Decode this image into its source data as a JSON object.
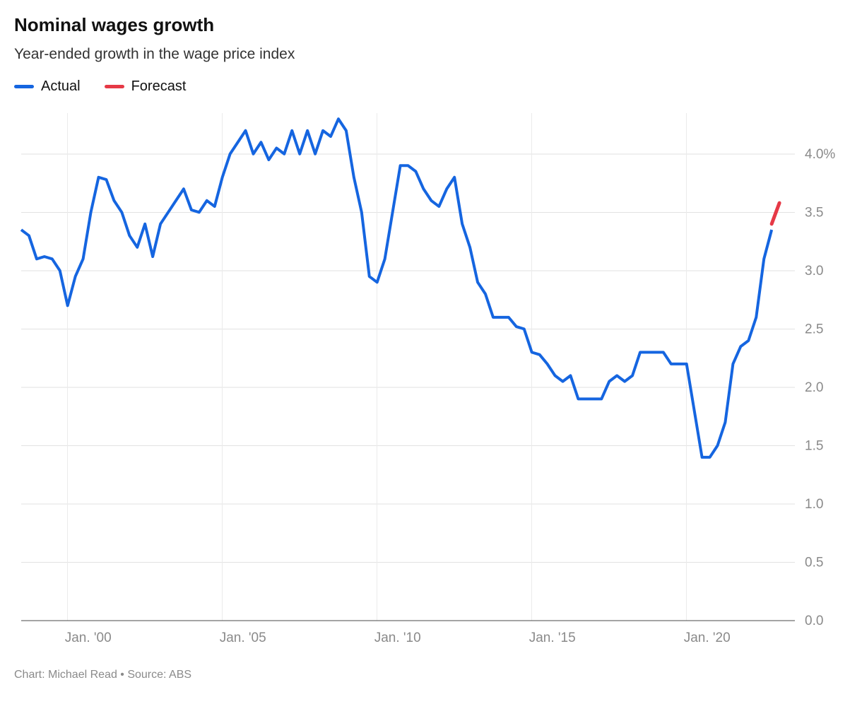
{
  "title": "Nominal wages growth",
  "subtitle": "Year-ended growth in the wage price index",
  "legend": {
    "actual": "Actual",
    "forecast": "Forecast"
  },
  "footer": "Chart: Michael Read • Source: ABS",
  "chart": {
    "type": "line",
    "background_color": "#ffffff",
    "grid_color": "#e2e2e2",
    "xgrid_color": "#ebebeb",
    "axis_label_color": "#8a8a8a",
    "baseline_color": "#4a4a4a",
    "line_width": 4,
    "forecast_line_width": 5,
    "axis_label_fontsize": 19,
    "ylim": [
      0.0,
      4.35
    ],
    "yticks": [
      0.0,
      0.5,
      1.0,
      1.5,
      2.0,
      2.5,
      3.0,
      3.5,
      4.0
    ],
    "ytick_labels": [
      "0.0",
      "0.5",
      "1.0",
      "1.5",
      "2.0",
      "2.5",
      "3.0",
      "3.5",
      "4.0%"
    ],
    "x_start_year": 1998.5,
    "x_end_year": 2023.5,
    "xticks": [
      2000,
      2005,
      2010,
      2015,
      2020
    ],
    "xtick_labels": [
      "Jan. '00",
      "Jan. '05",
      "Jan. '10",
      "Jan. '15",
      "Jan. '20"
    ],
    "series": {
      "actual": {
        "color": "#1565e0",
        "data": [
          [
            1998.5,
            3.35
          ],
          [
            1998.75,
            3.3
          ],
          [
            1999.0,
            3.1
          ],
          [
            1999.25,
            3.12
          ],
          [
            1999.5,
            3.1
          ],
          [
            1999.75,
            3.0
          ],
          [
            2000.0,
            2.7
          ],
          [
            2000.25,
            2.95
          ],
          [
            2000.5,
            3.1
          ],
          [
            2000.75,
            3.5
          ],
          [
            2001.0,
            3.8
          ],
          [
            2001.25,
            3.78
          ],
          [
            2001.5,
            3.6
          ],
          [
            2001.75,
            3.5
          ],
          [
            2002.0,
            3.3
          ],
          [
            2002.25,
            3.2
          ],
          [
            2002.5,
            3.4
          ],
          [
            2002.75,
            3.12
          ],
          [
            2003.0,
            3.4
          ],
          [
            2003.25,
            3.5
          ],
          [
            2003.5,
            3.6
          ],
          [
            2003.75,
            3.7
          ],
          [
            2004.0,
            3.52
          ],
          [
            2004.25,
            3.5
          ],
          [
            2004.5,
            3.6
          ],
          [
            2004.75,
            3.55
          ],
          [
            2005.0,
            3.8
          ],
          [
            2005.25,
            4.0
          ],
          [
            2005.5,
            4.1
          ],
          [
            2005.75,
            4.2
          ],
          [
            2006.0,
            4.0
          ],
          [
            2006.25,
            4.1
          ],
          [
            2006.5,
            3.95
          ],
          [
            2006.75,
            4.05
          ],
          [
            2007.0,
            4.0
          ],
          [
            2007.25,
            4.2
          ],
          [
            2007.5,
            4.0
          ],
          [
            2007.75,
            4.2
          ],
          [
            2008.0,
            4.0
          ],
          [
            2008.25,
            4.2
          ],
          [
            2008.5,
            4.15
          ],
          [
            2008.75,
            4.3
          ],
          [
            2009.0,
            4.2
          ],
          [
            2009.25,
            3.8
          ],
          [
            2009.5,
            3.5
          ],
          [
            2009.75,
            2.95
          ],
          [
            2010.0,
            2.9
          ],
          [
            2010.25,
            3.1
          ],
          [
            2010.5,
            3.5
          ],
          [
            2010.75,
            3.9
          ],
          [
            2011.0,
            3.9
          ],
          [
            2011.25,
            3.85
          ],
          [
            2011.5,
            3.7
          ],
          [
            2011.75,
            3.6
          ],
          [
            2012.0,
            3.55
          ],
          [
            2012.25,
            3.7
          ],
          [
            2012.5,
            3.8
          ],
          [
            2012.75,
            3.4
          ],
          [
            2013.0,
            3.2
          ],
          [
            2013.25,
            2.9
          ],
          [
            2013.5,
            2.8
          ],
          [
            2013.75,
            2.6
          ],
          [
            2014.0,
            2.6
          ],
          [
            2014.25,
            2.6
          ],
          [
            2014.5,
            2.52
          ],
          [
            2014.75,
            2.5
          ],
          [
            2015.0,
            2.3
          ],
          [
            2015.25,
            2.28
          ],
          [
            2015.5,
            2.2
          ],
          [
            2015.75,
            2.1
          ],
          [
            2016.0,
            2.05
          ],
          [
            2016.25,
            2.1
          ],
          [
            2016.5,
            1.9
          ],
          [
            2016.75,
            1.9
          ],
          [
            2017.0,
            1.9
          ],
          [
            2017.25,
            1.9
          ],
          [
            2017.5,
            2.05
          ],
          [
            2017.75,
            2.1
          ],
          [
            2018.0,
            2.05
          ],
          [
            2018.25,
            2.1
          ],
          [
            2018.5,
            2.3
          ],
          [
            2018.75,
            2.3
          ],
          [
            2019.0,
            2.3
          ],
          [
            2019.25,
            2.3
          ],
          [
            2019.5,
            2.2
          ],
          [
            2019.75,
            2.2
          ],
          [
            2020.0,
            2.2
          ],
          [
            2020.25,
            1.8
          ],
          [
            2020.5,
            1.4
          ],
          [
            2020.75,
            1.4
          ],
          [
            2021.0,
            1.5
          ],
          [
            2021.25,
            1.7
          ],
          [
            2021.5,
            2.2
          ],
          [
            2021.75,
            2.35
          ],
          [
            2022.0,
            2.4
          ],
          [
            2022.25,
            2.6
          ],
          [
            2022.5,
            3.1
          ],
          [
            2022.75,
            3.35
          ]
        ]
      },
      "forecast": {
        "color": "#e63946",
        "data": [
          [
            2022.75,
            3.4
          ],
          [
            2023.0,
            3.58
          ]
        ]
      }
    }
  }
}
